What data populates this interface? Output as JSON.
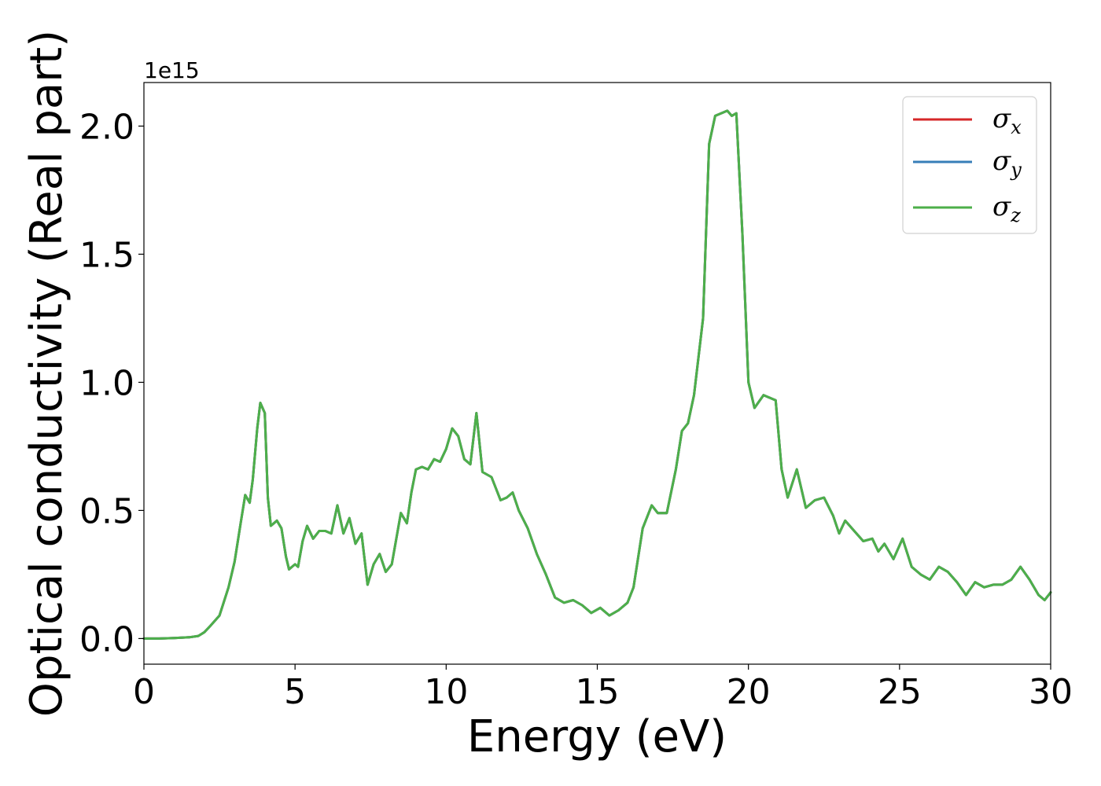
{
  "chart_data": {
    "type": "line",
    "xlabel": "Energy (eV)",
    "ylabel": "Optical conductivity (Real part)",
    "y_offset_label": "1e15",
    "xlim": [
      0,
      30
    ],
    "ylim": [
      -0.1,
      2.17
    ],
    "x_ticks": [
      0,
      5,
      10,
      15,
      20,
      25,
      30
    ],
    "x_tick_labels": [
      "0",
      "5",
      "10",
      "15",
      "20",
      "25",
      "30"
    ],
    "y_ticks": [
      0.0,
      0.5,
      1.0,
      1.5,
      2.0
    ],
    "y_tick_labels": [
      "0.0",
      "0.5",
      "1.0",
      "1.5",
      "2.0"
    ],
    "grid": false,
    "legend_position": "top-right",
    "x": [
      0,
      0.5,
      1,
      1.5,
      1.8,
      2.0,
      2.2,
      2.5,
      2.8,
      3.0,
      3.2,
      3.35,
      3.5,
      3.6,
      3.75,
      3.85,
      4.0,
      4.1,
      4.2,
      4.3,
      4.4,
      4.55,
      4.7,
      4.8,
      4.9,
      5.0,
      5.1,
      5.25,
      5.4,
      5.6,
      5.8,
      6.0,
      6.2,
      6.4,
      6.6,
      6.8,
      7.0,
      7.2,
      7.4,
      7.6,
      7.8,
      8.0,
      8.2,
      8.5,
      8.7,
      8.85,
      9.0,
      9.2,
      9.4,
      9.6,
      9.8,
      10.0,
      10.2,
      10.4,
      10.6,
      10.8,
      11.0,
      11.2,
      11.5,
      11.8,
      12.0,
      12.2,
      12.4,
      12.7,
      13.0,
      13.3,
      13.6,
      13.9,
      14.2,
      14.5,
      14.8,
      15.1,
      15.4,
      15.7,
      16.0,
      16.2,
      16.5,
      16.8,
      17.0,
      17.3,
      17.6,
      17.8,
      18.0,
      18.2,
      18.5,
      18.7,
      18.9,
      19.1,
      19.3,
      19.45,
      19.6,
      19.8,
      20.0,
      20.2,
      20.5,
      20.7,
      20.9,
      21.1,
      21.3,
      21.6,
      21.9,
      22.2,
      22.5,
      22.8,
      23.0,
      23.2,
      23.5,
      23.8,
      24.1,
      24.3,
      24.5,
      24.8,
      25.1,
      25.4,
      25.7,
      26.0,
      26.3,
      26.6,
      26.9,
      27.2,
      27.5,
      27.8,
      28.1,
      28.4,
      28.7,
      29.0,
      29.3,
      29.6,
      29.8,
      30.0
    ],
    "series": [
      {
        "name": "σ",
        "subscript": "x",
        "color": "#d62728",
        "values": [
          0,
          0,
          0.002,
          0.005,
          0.01,
          0.025,
          0.05,
          0.09,
          0.2,
          0.3,
          0.45,
          0.56,
          0.53,
          0.62,
          0.82,
          0.92,
          0.88,
          0.55,
          0.44,
          0.45,
          0.46,
          0.43,
          0.32,
          0.27,
          0.28,
          0.29,
          0.28,
          0.38,
          0.44,
          0.39,
          0.42,
          0.42,
          0.41,
          0.52,
          0.41,
          0.47,
          0.37,
          0.41,
          0.21,
          0.29,
          0.33,
          0.26,
          0.29,
          0.49,
          0.45,
          0.57,
          0.66,
          0.67,
          0.66,
          0.7,
          0.69,
          0.74,
          0.82,
          0.79,
          0.7,
          0.68,
          0.88,
          0.65,
          0.63,
          0.54,
          0.55,
          0.57,
          0.5,
          0.43,
          0.33,
          0.25,
          0.16,
          0.14,
          0.15,
          0.13,
          0.1,
          0.12,
          0.09,
          0.11,
          0.14,
          0.2,
          0.43,
          0.52,
          0.49,
          0.49,
          0.66,
          0.81,
          0.84,
          0.95,
          1.25,
          1.93,
          2.04,
          2.05,
          2.06,
          2.04,
          2.05,
          1.58,
          1.0,
          0.9,
          0.95,
          0.94,
          0.93,
          0.66,
          0.55,
          0.66,
          0.51,
          0.54,
          0.55,
          0.48,
          0.41,
          0.46,
          0.42,
          0.38,
          0.39,
          0.34,
          0.37,
          0.31,
          0.39,
          0.28,
          0.25,
          0.23,
          0.28,
          0.26,
          0.22,
          0.17,
          0.22,
          0.2,
          0.21,
          0.21,
          0.23,
          0.28,
          0.23,
          0.17,
          0.15,
          0.18
        ]
      },
      {
        "name": "σ",
        "subscript": "y",
        "color": "#377eb8",
        "values": [
          0,
          0,
          0.002,
          0.005,
          0.01,
          0.025,
          0.05,
          0.09,
          0.2,
          0.3,
          0.45,
          0.56,
          0.53,
          0.62,
          0.82,
          0.92,
          0.88,
          0.55,
          0.44,
          0.45,
          0.46,
          0.43,
          0.32,
          0.27,
          0.28,
          0.29,
          0.28,
          0.38,
          0.44,
          0.39,
          0.42,
          0.42,
          0.41,
          0.52,
          0.41,
          0.47,
          0.37,
          0.41,
          0.21,
          0.29,
          0.33,
          0.26,
          0.29,
          0.49,
          0.45,
          0.57,
          0.66,
          0.67,
          0.66,
          0.7,
          0.69,
          0.74,
          0.82,
          0.79,
          0.7,
          0.68,
          0.88,
          0.65,
          0.63,
          0.54,
          0.55,
          0.57,
          0.5,
          0.43,
          0.33,
          0.25,
          0.16,
          0.14,
          0.15,
          0.13,
          0.1,
          0.12,
          0.09,
          0.11,
          0.14,
          0.2,
          0.43,
          0.52,
          0.49,
          0.49,
          0.66,
          0.81,
          0.84,
          0.95,
          1.25,
          1.93,
          2.04,
          2.05,
          2.06,
          2.04,
          2.05,
          1.58,
          1.0,
          0.9,
          0.95,
          0.94,
          0.93,
          0.66,
          0.55,
          0.66,
          0.51,
          0.54,
          0.55,
          0.48,
          0.41,
          0.46,
          0.42,
          0.38,
          0.39,
          0.34,
          0.37,
          0.31,
          0.39,
          0.28,
          0.25,
          0.23,
          0.28,
          0.26,
          0.22,
          0.17,
          0.22,
          0.2,
          0.21,
          0.21,
          0.23,
          0.28,
          0.23,
          0.17,
          0.15,
          0.18
        ]
      },
      {
        "name": "σ",
        "subscript": "z",
        "color": "#4daf4a",
        "values": [
          0,
          0,
          0.002,
          0.005,
          0.01,
          0.025,
          0.05,
          0.09,
          0.2,
          0.3,
          0.45,
          0.56,
          0.53,
          0.62,
          0.82,
          0.92,
          0.88,
          0.55,
          0.44,
          0.45,
          0.46,
          0.43,
          0.32,
          0.27,
          0.28,
          0.29,
          0.28,
          0.38,
          0.44,
          0.39,
          0.42,
          0.42,
          0.41,
          0.52,
          0.41,
          0.47,
          0.37,
          0.41,
          0.21,
          0.29,
          0.33,
          0.26,
          0.29,
          0.49,
          0.45,
          0.57,
          0.66,
          0.67,
          0.66,
          0.7,
          0.69,
          0.74,
          0.82,
          0.79,
          0.7,
          0.68,
          0.88,
          0.65,
          0.63,
          0.54,
          0.55,
          0.57,
          0.5,
          0.43,
          0.33,
          0.25,
          0.16,
          0.14,
          0.15,
          0.13,
          0.1,
          0.12,
          0.09,
          0.11,
          0.14,
          0.2,
          0.43,
          0.52,
          0.49,
          0.49,
          0.66,
          0.81,
          0.84,
          0.95,
          1.25,
          1.93,
          2.04,
          2.05,
          2.06,
          2.04,
          2.05,
          1.58,
          1.0,
          0.9,
          0.95,
          0.94,
          0.93,
          0.66,
          0.55,
          0.66,
          0.51,
          0.54,
          0.55,
          0.48,
          0.41,
          0.46,
          0.42,
          0.38,
          0.39,
          0.34,
          0.37,
          0.31,
          0.39,
          0.28,
          0.25,
          0.23,
          0.28,
          0.26,
          0.22,
          0.17,
          0.22,
          0.2,
          0.21,
          0.21,
          0.23,
          0.28,
          0.23,
          0.17,
          0.15,
          0.18
        ]
      }
    ]
  }
}
